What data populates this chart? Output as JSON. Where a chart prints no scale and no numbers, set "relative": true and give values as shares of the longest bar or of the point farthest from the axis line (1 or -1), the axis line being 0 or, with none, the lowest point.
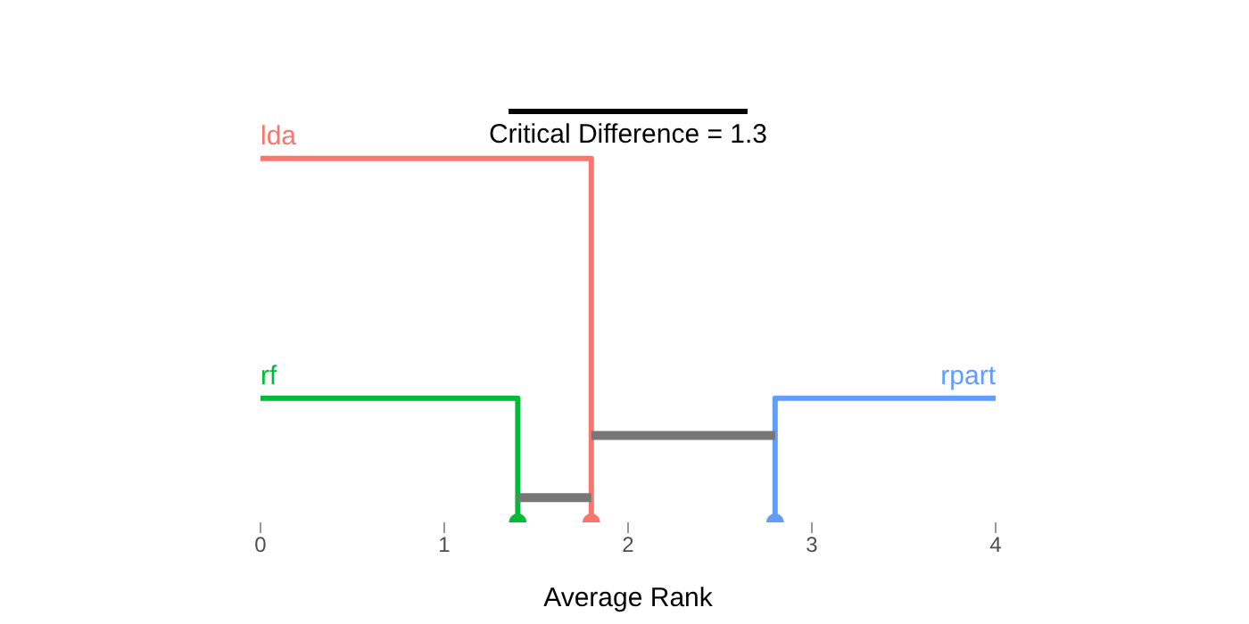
{
  "chart_data": {
    "type": "line",
    "relative": true,
    "xlabel": "Average Rank",
    "xlim": [
      0,
      4
    ],
    "xticks": [
      0,
      1,
      2,
      3,
      4
    ],
    "tick_labels": "x",
    "legend": false,
    "grid": false,
    "annotations": [
      "Critical Difference = 1.3"
    ],
    "series": [
      {
        "name": "lda",
        "color": "#f8766d",
        "x": [
          0,
          1.8,
          1.8
        ],
        "values": [
          0.88,
          0.88,
          0
        ]
      },
      {
        "name": "rf",
        "color": "#00ba38",
        "x": [
          0,
          1.4,
          1.4
        ],
        "values": [
          0.3,
          0.3,
          0
        ]
      },
      {
        "name": "rpart",
        "color": "#619cff",
        "x": [
          4,
          2.8,
          2.8
        ],
        "values": [
          0.3,
          0.3,
          0
        ]
      },
      {
        "type": "line",
        "color": "#777777",
        "x": [
          1.4,
          1.8
        ],
        "values": [
          0.06,
          0.06
        ]
      },
      {
        "type": "line",
        "color": "#777777",
        "x": [
          1.8,
          2.8
        ],
        "values": [
          0.21,
          0.21
        ]
      },
      {
        "type": "line",
        "color": "#000000",
        "x": [
          1.35,
          2.65
        ],
        "values": [
          1,
          1
        ]
      },
      {
        "type": "scatter",
        "color": "#00ba38",
        "x": [
          1.4
        ],
        "values": [
          0
        ]
      },
      {
        "type": "scatter",
        "color": "#f8766d",
        "x": [
          1.8
        ],
        "values": [
          0
        ]
      },
      {
        "type": "scatter",
        "color": "#619cff",
        "x": [
          2.8
        ],
        "values": [
          0
        ]
      }
    ]
  }
}
